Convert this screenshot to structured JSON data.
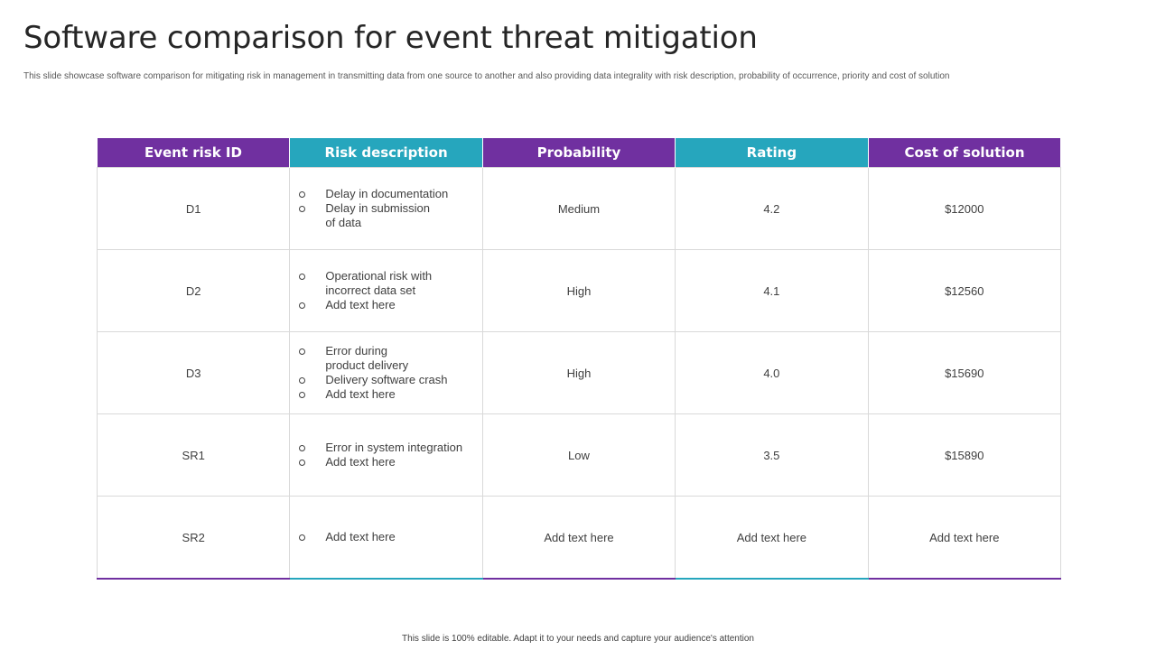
{
  "header": {
    "title": "Software comparison for event threat mitigation",
    "subtitle": "This slide showcase software comparison for mitigating risk in management in transmitting data from one source to another and also providing data integrality with risk description, probability of occurrence, priority and cost of solution"
  },
  "table": {
    "columns": [
      "Event risk ID",
      "Risk description",
      "Probability",
      "Rating",
      "Cost of solution"
    ],
    "header_colors": [
      "#7030a0",
      "#26a6bd",
      "#7030a0",
      "#26a6bd",
      "#7030a0"
    ],
    "rows": [
      {
        "id": "D1",
        "description": [
          "Delay in documentation",
          "Delay in submission of data"
        ],
        "probability": "Medium",
        "rating": "4.2",
        "cost": "$12000"
      },
      {
        "id": "D2",
        "description": [
          "Operational risk with incorrect data set",
          "Add text here"
        ],
        "probability": "High",
        "rating": "4.1",
        "cost": "$12560"
      },
      {
        "id": "D3",
        "description": [
          "Error during product delivery",
          "Delivery software crash",
          "Add text here"
        ],
        "probability": "High",
        "rating": "4.0",
        "cost": "$15690"
      },
      {
        "id": "SR1",
        "description": [
          "Error in system integration",
          "Add text here"
        ],
        "probability": "Low",
        "rating": "3.5",
        "cost": "$15890"
      },
      {
        "id": "SR2",
        "description": [
          "Add text here"
        ],
        "probability": "Add text here",
        "rating": "Add text here",
        "cost": "Add text here"
      }
    ]
  },
  "footer": {
    "text": "This slide is 100% editable. Adapt it to your needs and capture your audience's attention"
  }
}
